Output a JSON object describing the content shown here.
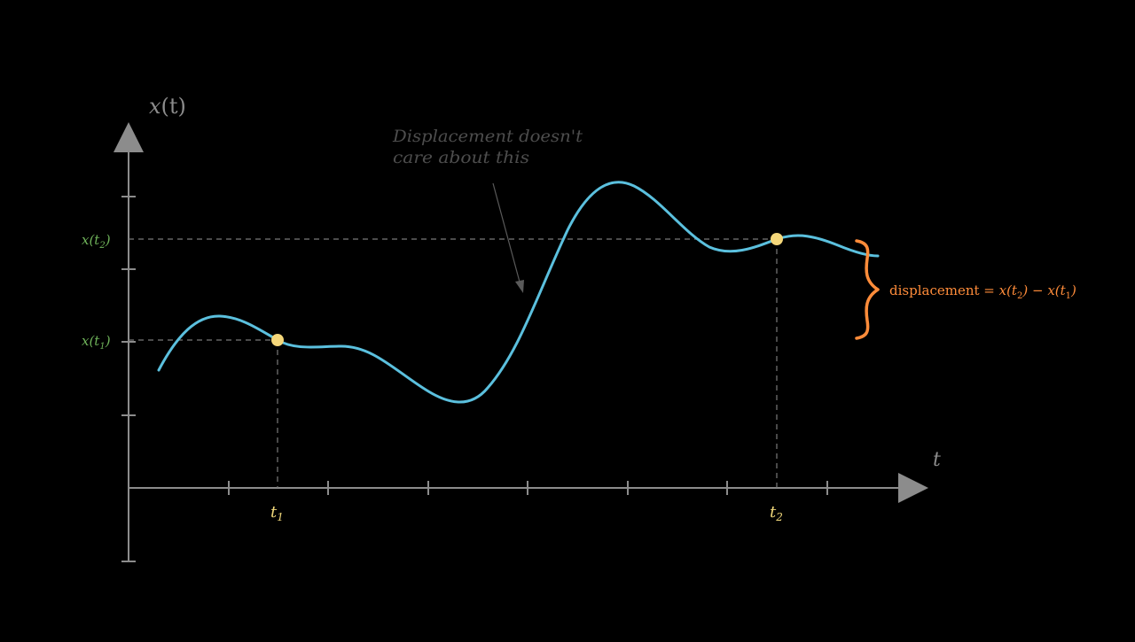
{
  "colors": {
    "background": "#000000",
    "axis": "#8c8c8c",
    "curve": "#5bc0de",
    "point": "#f5d77a",
    "y_labels": "#6fb35a",
    "t_labels": "#f0d77a",
    "displacement": "#ff8c3a",
    "annotation": "#4d4d4d",
    "guide": "#7a7a7a"
  },
  "axes": {
    "y_label_main": "x",
    "y_label_arg": "(t)",
    "x_label": "t"
  },
  "points": [
    {
      "t_base": "t",
      "t_sub": "1",
      "x_base": "x(t",
      "x_sub": "1",
      "x_close": ")"
    },
    {
      "t_base": "t",
      "t_sub": "2",
      "x_base": "x(t",
      "x_sub": "2",
      "x_close": ")"
    }
  ],
  "annotation": {
    "line1": "Displacement doesn't",
    "line2": "care about this"
  },
  "displacement": {
    "word": "displacement",
    "equals": " = ",
    "term1_base": "x(t",
    "term1_sub": "2",
    "term1_close": ")",
    "minus": " − ",
    "term2_base": "x(t",
    "term2_sub": "1",
    "term2_close": ")"
  }
}
